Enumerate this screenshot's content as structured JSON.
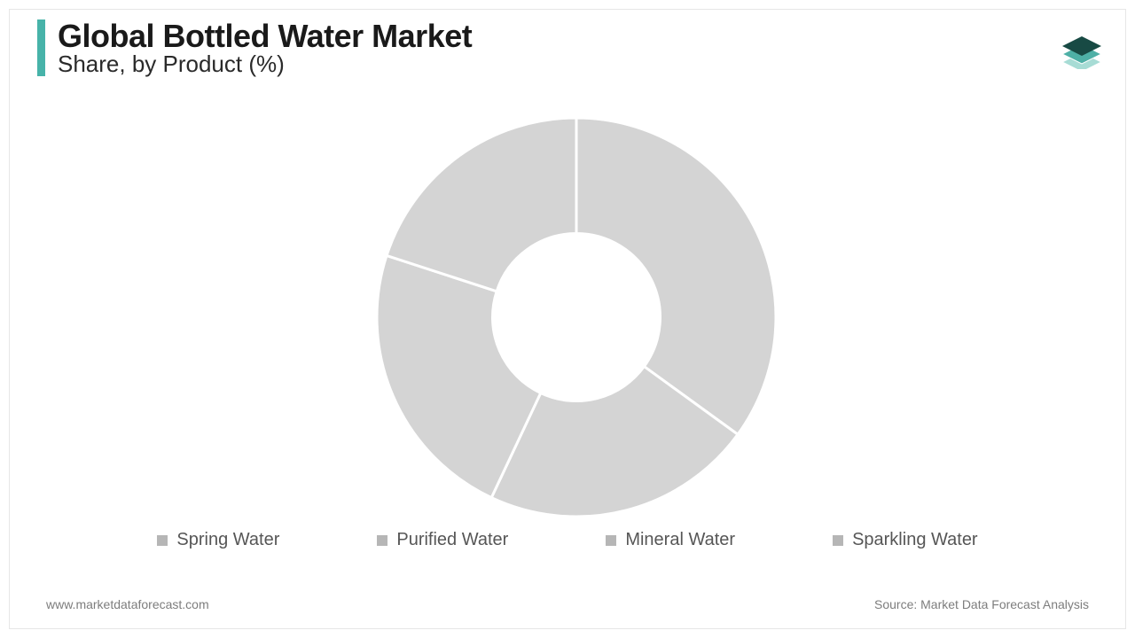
{
  "header": {
    "title": "Global Bottled Water Market",
    "subtitle": "Share, by Product (%)",
    "accent_color": "#47b3a9"
  },
  "chart": {
    "type": "donut",
    "categories": [
      "Spring Water",
      "Purified Water",
      "Mineral Water",
      "Sparkling Water"
    ],
    "values": [
      35,
      22,
      23,
      20
    ],
    "slice_color": "#d4d4d4",
    "separator_color": "#ffffff",
    "separator_width": 3,
    "inner_radius_ratio": 0.42,
    "background_color": "#ffffff",
    "start_angle_deg": 0
  },
  "legend": {
    "marker_color": "#b6b6b6",
    "text_color": "#565656",
    "font_size": 20
  },
  "footer": {
    "left": "www.marketdataforecast.com",
    "right": "Source: Market Data Forecast Analysis",
    "text_color": "#7d7d7d",
    "font_size": 14
  },
  "logo": {
    "top_color": "#184a44",
    "mid_color": "#4eb0a6",
    "bot_color": "#a7dcd5"
  }
}
